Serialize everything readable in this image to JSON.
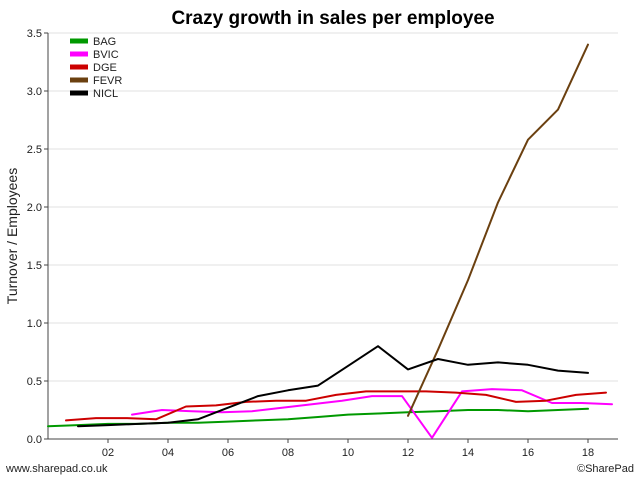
{
  "chart_data": {
    "type": "line",
    "title": "Crazy growth in sales per employee",
    "xlabel": "",
    "ylabel": "Turnover / Employees",
    "xlim": [
      0,
      19
    ],
    "ylim": [
      0,
      3.5
    ],
    "x_ticks": [
      2,
      4,
      6,
      8,
      10,
      12,
      14,
      16,
      18
    ],
    "x_tick_labels": [
      "02",
      "04",
      "06",
      "08",
      "10",
      "12",
      "14",
      "16",
      "18"
    ],
    "y_ticks": [
      0,
      0.5,
      1.0,
      1.5,
      2.0,
      2.5,
      3.0,
      3.5
    ],
    "y_tick_labels": [
      "0.0",
      "0.5",
      "1.0",
      "1.5",
      "2.0",
      "2.5",
      "3.0",
      "3.5"
    ],
    "grid": "horizontal",
    "legend_position": "top-left",
    "series": [
      {
        "name": "BAG",
        "color": "#009900",
        "x": [
          0,
          1,
          2,
          3,
          4,
          5,
          6,
          7,
          8,
          9,
          10,
          11,
          12,
          13,
          14,
          15,
          16,
          17,
          18
        ],
        "y": [
          0.11,
          0.12,
          0.13,
          0.13,
          0.14,
          0.14,
          0.15,
          0.16,
          0.17,
          0.19,
          0.21,
          0.22,
          0.23,
          0.24,
          0.25,
          0.25,
          0.24,
          0.25,
          0.26
        ]
      },
      {
        "name": "BVIC",
        "color": "#ff00ff",
        "x": [
          2.8,
          3.8,
          4.8,
          5.8,
          6.8,
          7.8,
          8.8,
          9.8,
          10.8,
          11.8,
          12.8,
          13.8,
          14.8,
          15.8,
          16.8,
          17.8,
          18.8
        ],
        "y": [
          0.21,
          0.25,
          0.24,
          0.23,
          0.24,
          0.27,
          0.3,
          0.33,
          0.37,
          0.37,
          0.01,
          0.41,
          0.43,
          0.42,
          0.31,
          0.31,
          0.3
        ]
      },
      {
        "name": "DGE",
        "color": "#cc0000",
        "x": [
          0.6,
          1.6,
          2.6,
          3.6,
          4.6,
          5.6,
          6.6,
          7.6,
          8.6,
          9.6,
          10.6,
          11.6,
          12.6,
          13.6,
          14.6,
          15.6,
          16.6,
          17.6,
          18.6
        ],
        "y": [
          0.16,
          0.18,
          0.18,
          0.17,
          0.28,
          0.29,
          0.32,
          0.33,
          0.33,
          0.38,
          0.41,
          0.41,
          0.41,
          0.4,
          0.38,
          0.32,
          0.33,
          0.38,
          0.4
        ]
      },
      {
        "name": "FEVR",
        "color": "#6b4010",
        "x": [
          12,
          13,
          14,
          15,
          16,
          17,
          18
        ],
        "y": [
          0.2,
          0.77,
          1.37,
          2.04,
          2.58,
          2.84,
          3.4
        ]
      },
      {
        "name": "NICL",
        "color": "#000000",
        "x": [
          1,
          2,
          3,
          4,
          5,
          6,
          7,
          8,
          9,
          10,
          11,
          12,
          13,
          14,
          15,
          16,
          17,
          18
        ],
        "y": [
          0.11,
          0.12,
          0.13,
          0.14,
          0.17,
          0.27,
          0.37,
          0.42,
          0.46,
          0.63,
          0.8,
          0.6,
          0.69,
          0.64,
          0.66,
          0.64,
          0.59,
          0.57
        ]
      }
    ]
  },
  "footer": {
    "left": "www.sharepad.co.uk",
    "right": "©SharePad"
  }
}
